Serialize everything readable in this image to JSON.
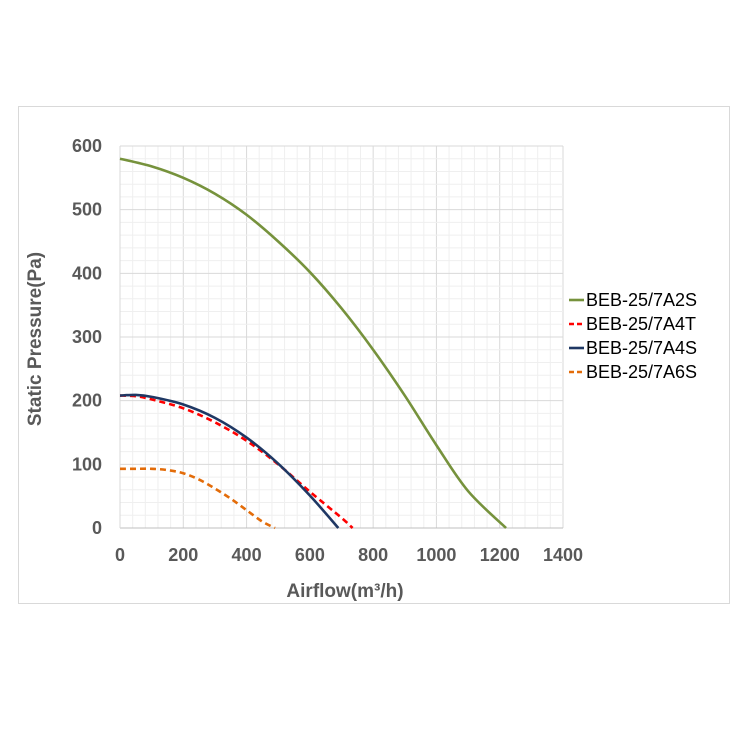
{
  "chart_data": {
    "type": "line",
    "title": "",
    "xlabel": "Airflow(m³/h)",
    "ylabel": "Static Pressure(Pa)",
    "xlim": [
      0,
      1400
    ],
    "ylim": [
      0,
      600
    ],
    "xticks": [
      0,
      200,
      400,
      600,
      800,
      1000,
      1200,
      1400
    ],
    "yticks": [
      0,
      100,
      200,
      300,
      400,
      500,
      600
    ],
    "grid": true,
    "legend_position": "right",
    "series": [
      {
        "name": "BEB-25/7A2S",
        "color": "#76923c",
        "dashed": false,
        "x": [
          0,
          100,
          200,
          300,
          400,
          500,
          600,
          700,
          800,
          900,
          1000,
          1100,
          1220
        ],
        "y": [
          580,
          568,
          550,
          525,
          492,
          450,
          402,
          345,
          280,
          208,
          130,
          58,
          0
        ]
      },
      {
        "name": "BEB-25/7A4T",
        "color": "#ff0000",
        "dashed": true,
        "x": [
          0,
          50,
          100,
          200,
          300,
          400,
          500,
          600,
          700,
          735
        ],
        "y": [
          208,
          207,
          202,
          188,
          166,
          137,
          100,
          57,
          16,
          0
        ]
      },
      {
        "name": "BEB-25/7A4S",
        "color": "#1f3864",
        "dashed": false,
        "x": [
          0,
          50,
          100,
          200,
          300,
          400,
          500,
          600,
          690
        ],
        "y": [
          208,
          209,
          206,
          194,
          173,
          142,
          101,
          51,
          0
        ]
      },
      {
        "name": "BEB-25/7A6S",
        "color": "#e36c09",
        "dashed": true,
        "x": [
          0,
          50,
          100,
          150,
          200,
          250,
          300,
          350,
          400,
          450,
          490
        ],
        "y": [
          93,
          93,
          93,
          91,
          86,
          76,
          62,
          46,
          28,
          10,
          0
        ]
      }
    ]
  }
}
